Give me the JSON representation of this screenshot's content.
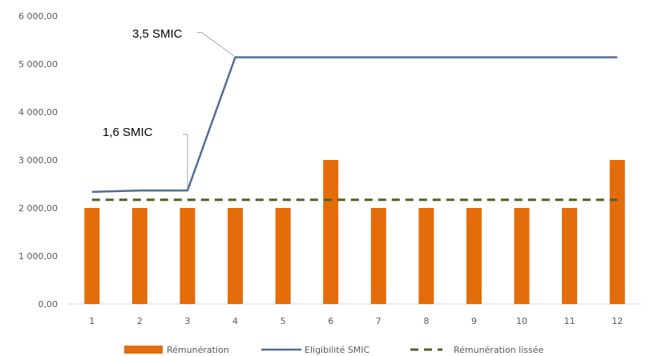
{
  "chart_data": {
    "type": "bar",
    "categories": [
      "1",
      "2",
      "3",
      "4",
      "5",
      "6",
      "7",
      "8",
      "9",
      "10",
      "11",
      "12"
    ],
    "ylim": [
      0,
      6000
    ],
    "yticks": [
      "0,00",
      "1 000,00",
      "2 000,00",
      "3 000,00",
      "4 000,00",
      "5 000,00",
      "6 000,00"
    ],
    "ytick_values": [
      0,
      1000,
      2000,
      3000,
      4000,
      5000,
      6000
    ],
    "grid": false,
    "legend_position": "bottom",
    "series": [
      {
        "name": "Rémunération",
        "type": "bar",
        "color": "#E46C0A",
        "values": [
          2000,
          2000,
          2000,
          2000,
          2000,
          3000,
          2000,
          2000,
          2000,
          2000,
          2000,
          3000
        ]
      },
      {
        "name": "Eligibilité SMIC",
        "type": "line",
        "color": "#4F6D9A",
        "values": [
          2335,
          2365,
          2365,
          5140,
          5140,
          5140,
          5140,
          5140,
          5140,
          5140,
          5140,
          5140
        ]
      },
      {
        "name": "Rémunération lissée",
        "type": "line-dashed",
        "color": "#4F6228",
        "values": [
          2170,
          2170,
          2170,
          2170,
          2170,
          2170,
          2170,
          2170,
          2170,
          2170,
          2170,
          2170
        ]
      }
    ],
    "annotations": [
      {
        "text": "3,5 SMIC",
        "x_index": 3,
        "y": 5140
      },
      {
        "text": "1,6 SMIC",
        "x_index": 2,
        "y": 2365
      }
    ]
  }
}
